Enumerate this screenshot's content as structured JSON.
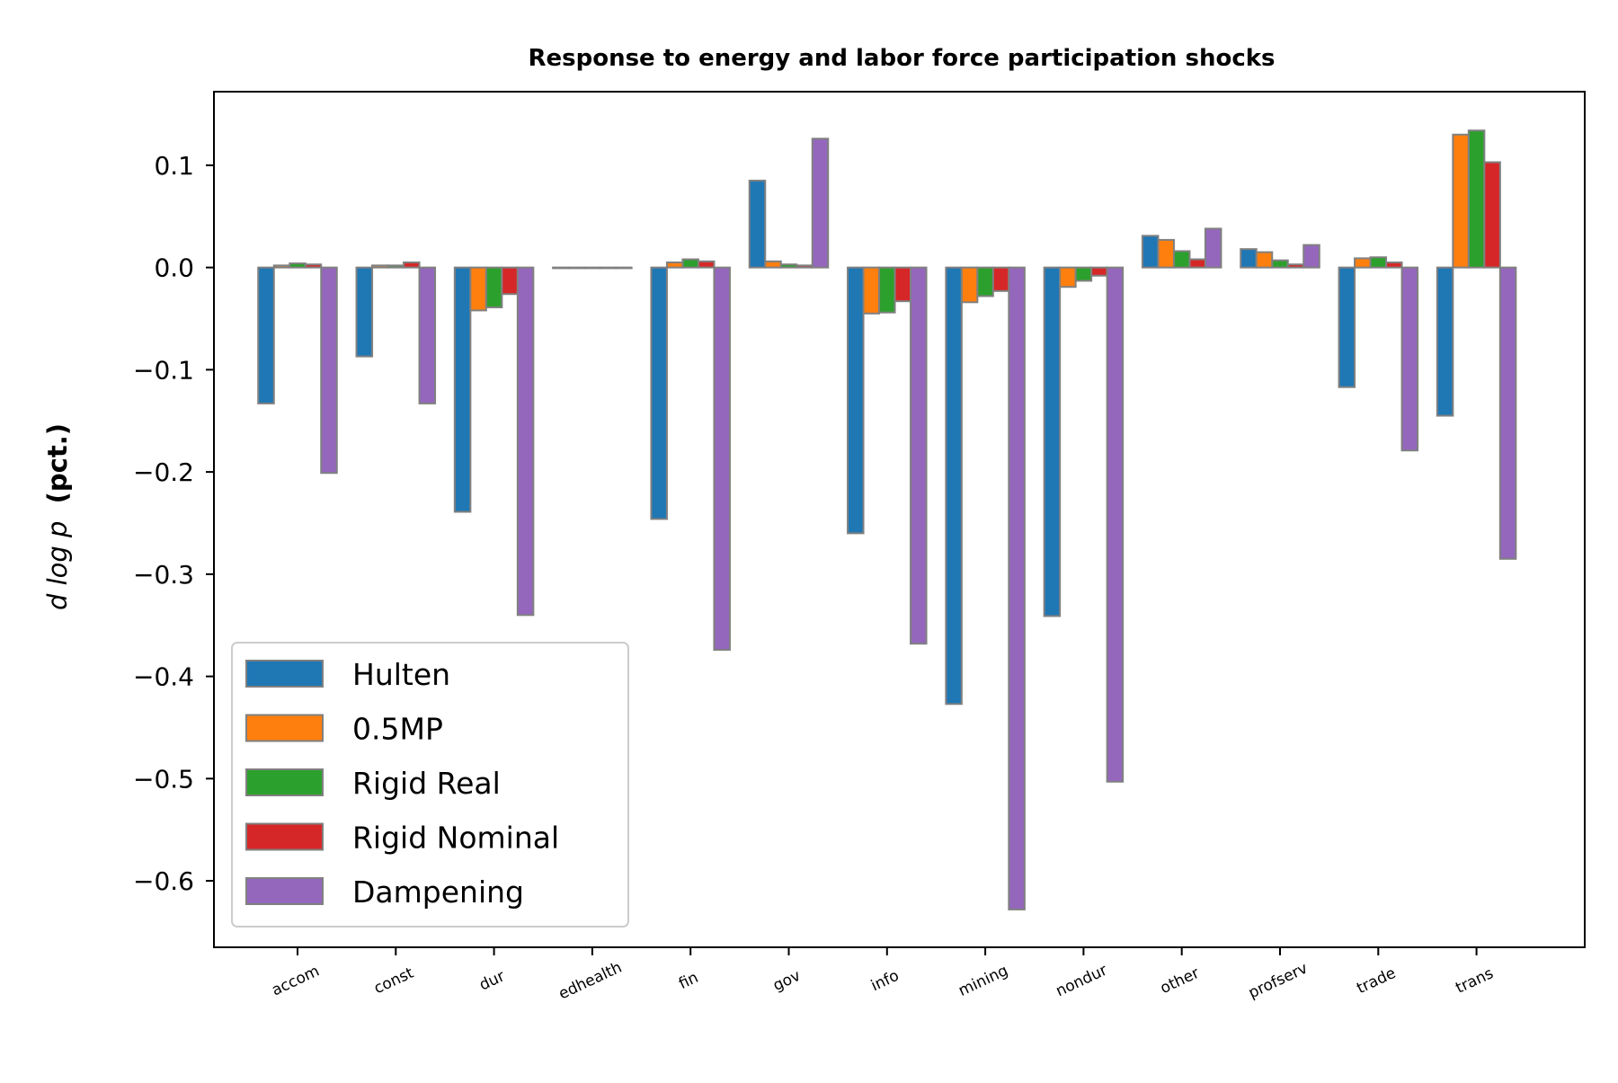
{
  "chart_data": {
    "type": "bar",
    "title": "Response to energy and labor force participation shocks",
    "ylabel_math": "d log p",
    "ylabel_unit": "(pct.)",
    "xlabel": "",
    "ylim": [
      -0.665,
      0.172
    ],
    "yticks": [
      0.1,
      0.0,
      -0.1,
      -0.2,
      -0.3,
      -0.4,
      -0.5,
      -0.6
    ],
    "ytick_labels": [
      "0.1",
      "0.0",
      "−0.1",
      "−0.2",
      "−0.3",
      "−0.4",
      "−0.5",
      "−0.6"
    ],
    "categories": [
      "accom",
      "const",
      "dur",
      "edhealth",
      "fin",
      "gov",
      "info",
      "mining",
      "nondur",
      "other",
      "profserv",
      "trade",
      "trans"
    ],
    "bar_edge_color": "#808080",
    "legend_position": "lower left",
    "series": [
      {
        "name": "Hulten",
        "color": "#1f77b4",
        "values": [
          -0.133,
          -0.087,
          -0.239,
          0.0,
          -0.246,
          0.085,
          -0.26,
          -0.427,
          -0.341,
          0.031,
          0.018,
          -0.117,
          -0.145
        ]
      },
      {
        "name": "0.5MP",
        "color": "#ff7f0e",
        "values": [
          0.002,
          0.002,
          -0.042,
          0.0,
          0.005,
          0.006,
          -0.045,
          -0.034,
          -0.019,
          0.027,
          0.015,
          0.009,
          0.13
        ]
      },
      {
        "name": "Rigid Real",
        "color": "#2ca02c",
        "values": [
          0.004,
          0.002,
          -0.039,
          0.0,
          0.008,
          0.003,
          -0.044,
          -0.028,
          -0.013,
          0.016,
          0.007,
          0.01,
          0.134
        ]
      },
      {
        "name": "Rigid Nominal",
        "color": "#d62728",
        "values": [
          0.003,
          0.005,
          -0.026,
          0.0,
          0.006,
          0.002,
          -0.033,
          -0.023,
          -0.008,
          0.008,
          0.003,
          0.005,
          0.103
        ]
      },
      {
        "name": "Dampening",
        "color": "#9467bd",
        "values": [
          -0.201,
          -0.133,
          -0.34,
          0.0,
          -0.374,
          0.126,
          -0.368,
          -0.628,
          -0.503,
          0.038,
          0.022,
          -0.179,
          -0.285
        ]
      }
    ]
  }
}
